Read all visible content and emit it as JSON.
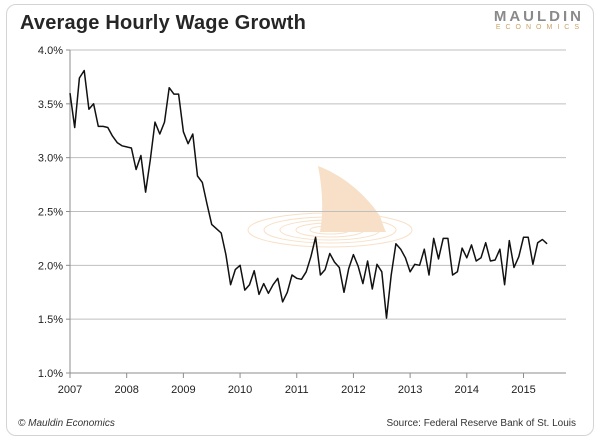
{
  "title": "Average Hourly Wage Growth",
  "logo": {
    "main": "MAULDIN",
    "sub": "ECONOMICS"
  },
  "footer": {
    "copyright": "© Mauldin Economics",
    "source": "Source: Federal Reserve Bank of St. Louis"
  },
  "chart_data": {
    "type": "line",
    "title": "Average Hourly Wage Growth",
    "xlabel": "",
    "ylabel": "",
    "xlim": [
      2007,
      2015.75
    ],
    "ylim": [
      1.0,
      4.0
    ],
    "x_ticks": [
      2007,
      2008,
      2009,
      2010,
      2011,
      2012,
      2013,
      2014,
      2015
    ],
    "x_tick_labels": [
      "2007",
      "2008",
      "2009",
      "2010",
      "2011",
      "2012",
      "2013",
      "2014",
      "2015"
    ],
    "y_ticks": [
      1.0,
      1.5,
      2.0,
      2.5,
      3.0,
      3.5,
      4.0
    ],
    "y_tick_labels": [
      "1.0%",
      "1.5%",
      "2.0%",
      "2.5%",
      "3.0%",
      "3.5%",
      "4.0%"
    ],
    "grid": "horizontal",
    "series_color": "#111111",
    "series": [
      {
        "name": "",
        "start": "2007-01",
        "frequency": "monthly",
        "values": [
          3.6,
          3.28,
          3.74,
          3.81,
          3.45,
          3.5,
          3.29,
          3.29,
          3.28,
          3.2,
          3.14,
          3.11,
          3.1,
          3.09,
          2.89,
          3.02,
          2.68,
          2.98,
          3.33,
          3.22,
          3.33,
          3.65,
          3.59,
          3.59,
          3.24,
          3.13,
          3.22,
          2.83,
          2.77,
          2.57,
          2.38,
          2.34,
          2.3,
          2.1,
          1.82,
          1.96,
          2.0,
          1.77,
          1.82,
          1.95,
          1.73,
          1.83,
          1.74,
          1.82,
          1.88,
          1.66,
          1.75,
          1.91,
          1.88,
          1.87,
          1.94,
          2.08,
          2.26,
          1.91,
          1.96,
          2.11,
          2.03,
          1.98,
          1.75,
          1.97,
          2.1,
          1.99,
          1.83,
          2.04,
          1.78,
          2.01,
          1.94,
          1.51,
          1.91,
          2.2,
          2.15,
          2.07,
          1.94,
          2.01,
          2.0,
          2.15,
          1.91,
          2.25,
          2.06,
          2.25,
          2.25,
          1.91,
          1.94,
          2.16,
          2.07,
          2.19,
          2.04,
          2.07,
          2.21,
          2.04,
          2.05,
          2.15,
          1.82,
          2.23,
          1.98,
          2.08,
          2.26,
          2.26,
          2.01,
          2.21,
          2.24,
          2.2
        ]
      }
    ]
  },
  "decoration": {
    "watermark": "shark-fin-icon",
    "watermark_color": "#f2c89a"
  }
}
